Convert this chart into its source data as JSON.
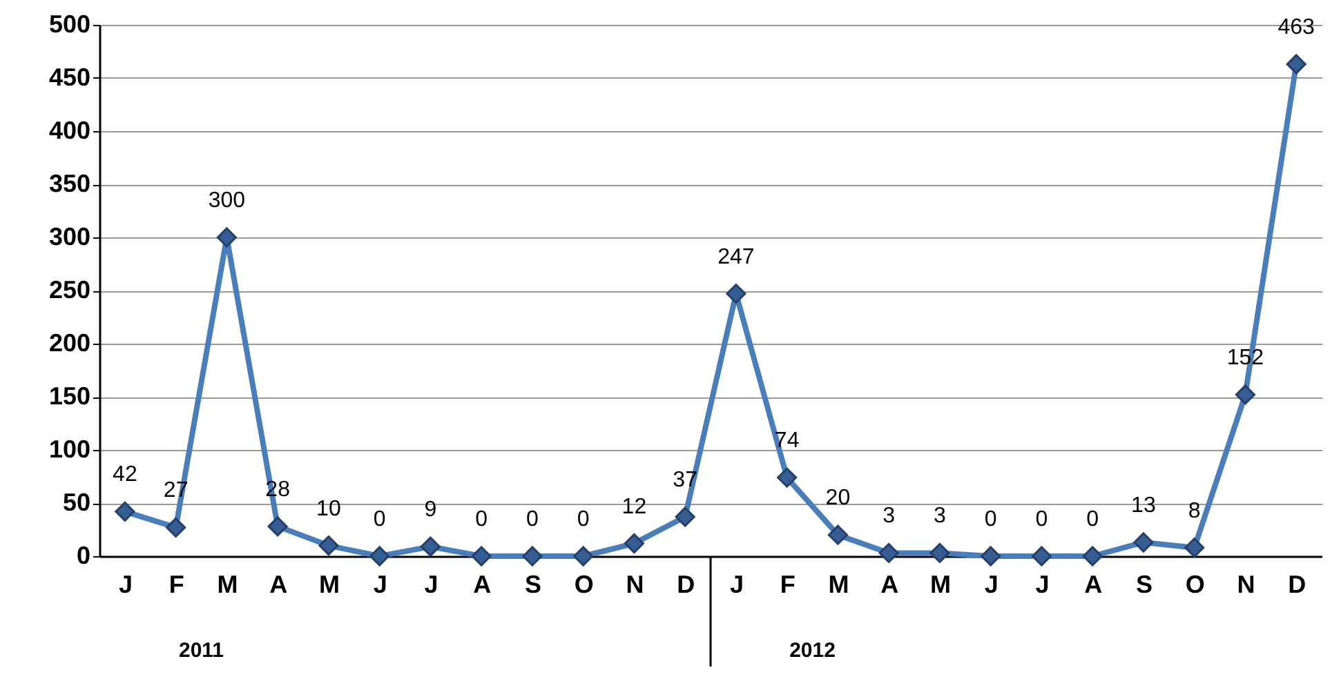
{
  "chart_data": {
    "type": "line",
    "categories": [
      "J",
      "F",
      "M",
      "A",
      "M",
      "J",
      "J",
      "A",
      "S",
      "O",
      "N",
      "D",
      "J",
      "F",
      "M",
      "A",
      "M",
      "J",
      "J",
      "A",
      "S",
      "O",
      "N",
      "D"
    ],
    "series": [
      {
        "color": "#4a7ebb",
        "values": [
          42,
          27,
          300,
          28,
          10,
          0,
          9,
          0,
          0,
          0,
          12,
          37,
          247,
          74,
          20,
          3,
          3,
          0,
          0,
          0,
          13,
          8,
          152,
          463
        ]
      }
    ],
    "ylim": [
      0,
      500
    ],
    "yticks": [
      0,
      50,
      100,
      150,
      200,
      250,
      300,
      350,
      400,
      450,
      500
    ],
    "grid": "y",
    "marker": "diamond",
    "line_style": "solid",
    "data_labels": true,
    "annotations": [
      "2011",
      "2012"
    ]
  }
}
